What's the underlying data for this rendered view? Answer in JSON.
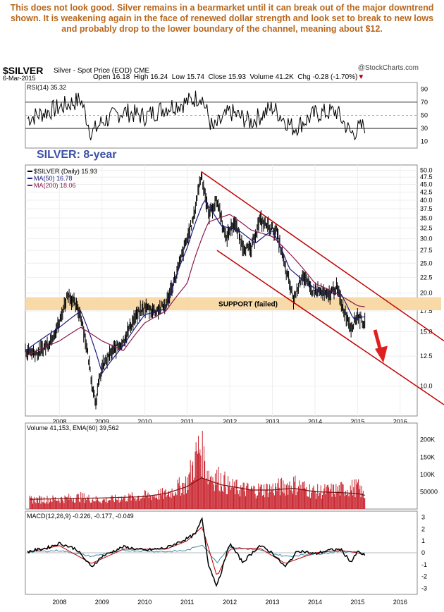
{
  "caption": "This does not look good. Silver remains in a bearmarket until it can break out of the major downtrend shown. It is weakening again in the face of renewed dollar strength and look set to break to new lows and probably drop to the lower boundary of the channel, meaning about $12.",
  "header": {
    "symbol": "$SILVER",
    "description": "Silver - Spot Price (EOD) CME",
    "watermark": "@StockCharts.com",
    "date": "6-Mar-2015",
    "open_label": "Open",
    "open": "16.18",
    "high_label": "High",
    "high": "16.24",
    "low_label": "Low",
    "low": "15.74",
    "close_label": "Close",
    "close": "15.93",
    "volume_label": "Volume",
    "volume": "41.2K",
    "chg_label": "Chg",
    "chg": "-0.28 (-1.70%)",
    "chg_marker": "▼"
  },
  "colors": {
    "price": "#000000",
    "ma50": "#1a1a7a",
    "ma200": "#8b1a4b",
    "channel": "#c00000",
    "support": "#f8d9a8",
    "volume": "#c8202a",
    "signal": "#c00000",
    "hist": "#3a8aa8",
    "arrow": "#e02020",
    "label_blue": "#3a4fa8"
  },
  "chart_data": [
    {
      "type": "line",
      "panel": "rsi",
      "title": "RSI(14) 35.32",
      "ylim": [
        0,
        100
      ],
      "yticks": [
        "90",
        "70",
        "50",
        "30",
        "10"
      ],
      "series": [
        {
          "name": "RSI(14)",
          "x": [
            2007.25,
            2008.0,
            2008.5,
            2008.75,
            2009.0,
            2009.5,
            2010.0,
            2010.5,
            2011.0,
            2011.33,
            2011.6,
            2012.0,
            2012.5,
            2013.0,
            2013.5,
            2014.0,
            2014.5,
            2014.85,
            2015.17
          ],
          "values": [
            45,
            62,
            74,
            22,
            40,
            56,
            48,
            62,
            70,
            80,
            28,
            55,
            40,
            62,
            30,
            52,
            56,
            22,
            35
          ]
        }
      ]
    },
    {
      "type": "line",
      "panel": "price",
      "legend": [
        "$SILVER (Daily) 15.93",
        "MA(50) 16.78",
        "MA(200) 18.06"
      ],
      "annotations": [
        "SILVER: 8-year",
        "SUPPORT (failed)"
      ],
      "yscale": "log",
      "ylim": [
        8,
        52
      ],
      "yticks": [
        10.0,
        12.5,
        15.0,
        17.5,
        20.0,
        22.5,
        25.0,
        27.5,
        30.0,
        32.5,
        35.0,
        37.5,
        40.0,
        42.5,
        45.0,
        47.5,
        50.0
      ],
      "ytick_labels": [
        "10.0",
        "12.5",
        "15.0",
        "17.5",
        "20.0",
        "22.5",
        "25.0",
        "27.5",
        "30.0",
        "32.5",
        "35.0",
        "37.5",
        "40.0",
        "42.5",
        "45.0",
        "47.5",
        "50.0"
      ],
      "xlim": [
        2007.2,
        2016.4
      ],
      "xticks": [
        2008,
        2009,
        2010,
        2011,
        2012,
        2013,
        2014,
        2015,
        2016
      ],
      "xtick_labels": [
        "2008",
        "2009",
        "2010",
        "2011",
        "2012",
        "2013",
        "2014",
        "2015",
        "2016"
      ],
      "series": [
        {
          "name": "$SILVER (Daily)",
          "x": [
            2007.2,
            2007.5,
            2007.75,
            2008.0,
            2008.2,
            2008.5,
            2008.75,
            2008.85,
            2009.0,
            2009.25,
            2009.5,
            2009.75,
            2010.0,
            2010.25,
            2010.5,
            2010.75,
            2011.0,
            2011.15,
            2011.33,
            2011.5,
            2011.7,
            2011.9,
            2012.1,
            2012.3,
            2012.5,
            2012.7,
            2012.9,
            2013.1,
            2013.3,
            2013.5,
            2013.7,
            2013.9,
            2014.1,
            2014.3,
            2014.5,
            2014.65,
            2014.85,
            2015.0,
            2015.17
          ],
          "values": [
            13.0,
            12.8,
            13.8,
            16.0,
            20.0,
            17.0,
            10.5,
            8.9,
            11.5,
            13.0,
            14.0,
            16.5,
            18.0,
            17.5,
            18.3,
            23.0,
            30.0,
            35.0,
            48.5,
            36.0,
            40.0,
            30.0,
            34.0,
            28.5,
            27.5,
            34.5,
            33.0,
            31.5,
            24.0,
            19.0,
            23.0,
            20.5,
            20.3,
            19.5,
            21.0,
            18.0,
            15.5,
            17.0,
            15.93
          ]
        },
        {
          "name": "MA(50)",
          "x": [
            2007.2,
            2008.0,
            2008.5,
            2009.0,
            2009.5,
            2010.0,
            2010.5,
            2011.0,
            2011.4,
            2011.8,
            2012.2,
            2012.6,
            2013.0,
            2013.4,
            2013.8,
            2014.2,
            2014.6,
            2014.9,
            2015.17
          ],
          "values": [
            13.0,
            15.5,
            17.5,
            11.0,
            13.5,
            17.0,
            17.8,
            28.0,
            40.0,
            33.0,
            32.0,
            29.0,
            32.0,
            24.0,
            21.5,
            20.0,
            20.0,
            16.5,
            16.78
          ]
        },
        {
          "name": "MA(200)",
          "x": [
            2007.2,
            2008.0,
            2008.5,
            2009.0,
            2009.5,
            2010.0,
            2010.5,
            2011.0,
            2011.5,
            2012.0,
            2012.5,
            2013.0,
            2013.5,
            2014.0,
            2014.5,
            2015.0,
            2015.17
          ],
          "values": [
            12.5,
            14.0,
            15.5,
            14.0,
            13.0,
            16.0,
            17.5,
            21.5,
            34.0,
            36.0,
            32.0,
            30.5,
            26.0,
            21.5,
            20.0,
            18.2,
            18.06
          ]
        }
      ]
    },
    {
      "type": "bar",
      "panel": "volume",
      "title": "Volume 41,153, EMA(60) 39,562",
      "yticks": [
        "200K",
        "150K",
        "100K",
        "50000"
      ],
      "ylim": [
        0,
        240000
      ],
      "series": [
        {
          "name": "Volume",
          "x": [
            2007.3,
            2008.0,
            2008.5,
            2009.0,
            2009.5,
            2010.0,
            2010.5,
            2011.0,
            2011.3,
            2011.5,
            2011.8,
            2012.0,
            2012.5,
            2013.0,
            2013.5,
            2014.0,
            2014.5,
            2015.0,
            2015.17
          ],
          "values": [
            30000,
            32000,
            38000,
            28000,
            35000,
            42000,
            48000,
            85000,
            200000,
            110000,
            95000,
            70000,
            60000,
            65000,
            80000,
            55000,
            60000,
            70000,
            41153
          ]
        },
        {
          "name": "EMA(60)",
          "x": [
            2007.3,
            2008.0,
            2009.0,
            2010.0,
            2010.5,
            2011.0,
            2011.33,
            2011.8,
            2012.5,
            2013.0,
            2013.5,
            2014.0,
            2014.5,
            2015.0,
            2015.17
          ],
          "values": [
            28000,
            30000,
            32000,
            36000,
            45000,
            65000,
            90000,
            70000,
            55000,
            55000,
            60000,
            50000,
            48000,
            45000,
            39562
          ]
        }
      ]
    },
    {
      "type": "line",
      "panel": "macd",
      "title": "MACD(12,26,9) -0.226, -0.177, -0.049",
      "ylim": [
        -3.5,
        3.5
      ],
      "yticks": [
        "3",
        "2",
        "1",
        "0",
        "-1",
        "-2",
        "-3"
      ],
      "series": [
        {
          "name": "MACD",
          "x": [
            2007.25,
            2007.7,
            2008.0,
            2008.4,
            2008.75,
            2009.0,
            2009.5,
            2010.0,
            2010.5,
            2011.0,
            2011.2,
            2011.35,
            2011.5,
            2011.7,
            2012.0,
            2012.3,
            2012.7,
            2013.0,
            2013.3,
            2013.6,
            2014.0,
            2014.3,
            2014.6,
            2014.85,
            2015.0,
            2015.17
          ],
          "values": [
            0.1,
            0.4,
            0.8,
            0.3,
            -1.2,
            -0.3,
            0.5,
            0.2,
            0.4,
            1.2,
            1.6,
            2.9,
            -1.0,
            -2.8,
            0.8,
            -0.8,
            0.6,
            0.0,
            -1.2,
            0.2,
            -0.1,
            0.2,
            0.3,
            -0.8,
            0.1,
            -0.226
          ]
        },
        {
          "name": "Signal",
          "x": [
            2007.25,
            2008.0,
            2008.75,
            2009.5,
            2010.5,
            2011.0,
            2011.35,
            2011.7,
            2012.0,
            2012.7,
            2013.3,
            2014.0,
            2014.6,
            2015.0,
            2015.17
          ],
          "values": [
            0.05,
            0.6,
            -0.9,
            0.3,
            0.3,
            1.0,
            2.2,
            -2.0,
            0.3,
            0.4,
            -0.9,
            0.0,
            0.2,
            0.0,
            -0.177
          ]
        },
        {
          "name": "Histogram",
          "x": [
            2007.25,
            2008.0,
            2008.75,
            2009.5,
            2010.5,
            2011.0,
            2011.35,
            2011.7,
            2012.0,
            2012.7,
            2013.3,
            2014.0,
            2014.6,
            2015.0,
            2015.17
          ],
          "values": [
            0.05,
            0.2,
            -0.3,
            0.2,
            0.1,
            0.2,
            0.7,
            -0.8,
            0.5,
            0.2,
            -0.3,
            -0.1,
            0.1,
            0.1,
            -0.049
          ]
        }
      ]
    }
  ]
}
